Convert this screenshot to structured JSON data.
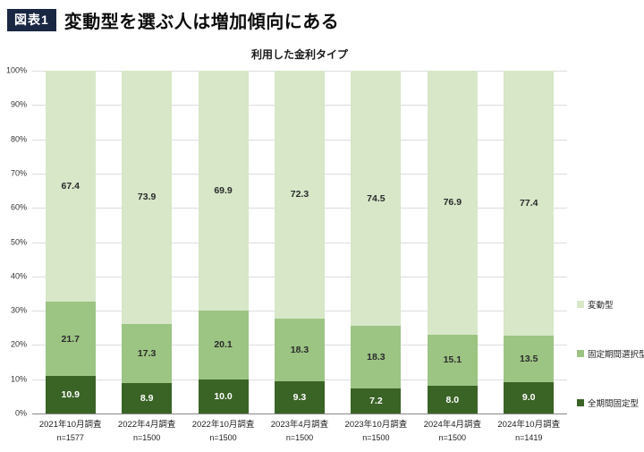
{
  "header": {
    "badge": "図表1",
    "title": "変動型を選ぶ人は増加傾向にある"
  },
  "colors": {
    "badge_bg": "#1a2742",
    "grid": "#dddddd",
    "axis": "#888888"
  },
  "chart_data": {
    "type": "bar",
    "stacked": true,
    "title": "利用した金利タイプ",
    "categories": [
      "2021年10月調査",
      "2022年4月調査",
      "2022年10月調査",
      "2023年4月調査",
      "2023年10月調査",
      "2024年4月調査",
      "2024年10月調査"
    ],
    "sample_sizes": [
      "n=1577",
      "n=1500",
      "n=1500",
      "n=1500",
      "n=1500",
      "n=1500",
      "n=1419"
    ],
    "series": [
      {
        "name": "全期間固定型",
        "color": "#3a6326",
        "label_color": "#ffffff",
        "values": [
          10.9,
          8.9,
          10.0,
          9.3,
          7.2,
          8.0,
          9.0
        ]
      },
      {
        "name": "固定期間選択型",
        "color": "#9cc483",
        "label_color": "#2b2b2b",
        "values": [
          21.7,
          17.3,
          20.1,
          18.3,
          18.3,
          15.1,
          13.5
        ]
      },
      {
        "name": "変動型",
        "color": "#d7e7c8",
        "label_color": "#2b2b2b",
        "values": [
          67.4,
          73.9,
          69.9,
          72.3,
          74.5,
          76.9,
          77.4
        ]
      }
    ],
    "ylim": [
      0,
      100
    ],
    "yticks": [
      "0%",
      "10%",
      "20%",
      "30%",
      "40%",
      "50%",
      "60%",
      "70%",
      "80%",
      "90%",
      "100%"
    ],
    "legend": [
      "変動型",
      "固定期間選択型",
      "全期間固定型"
    ],
    "legend_position": "right",
    "grid": true
  }
}
